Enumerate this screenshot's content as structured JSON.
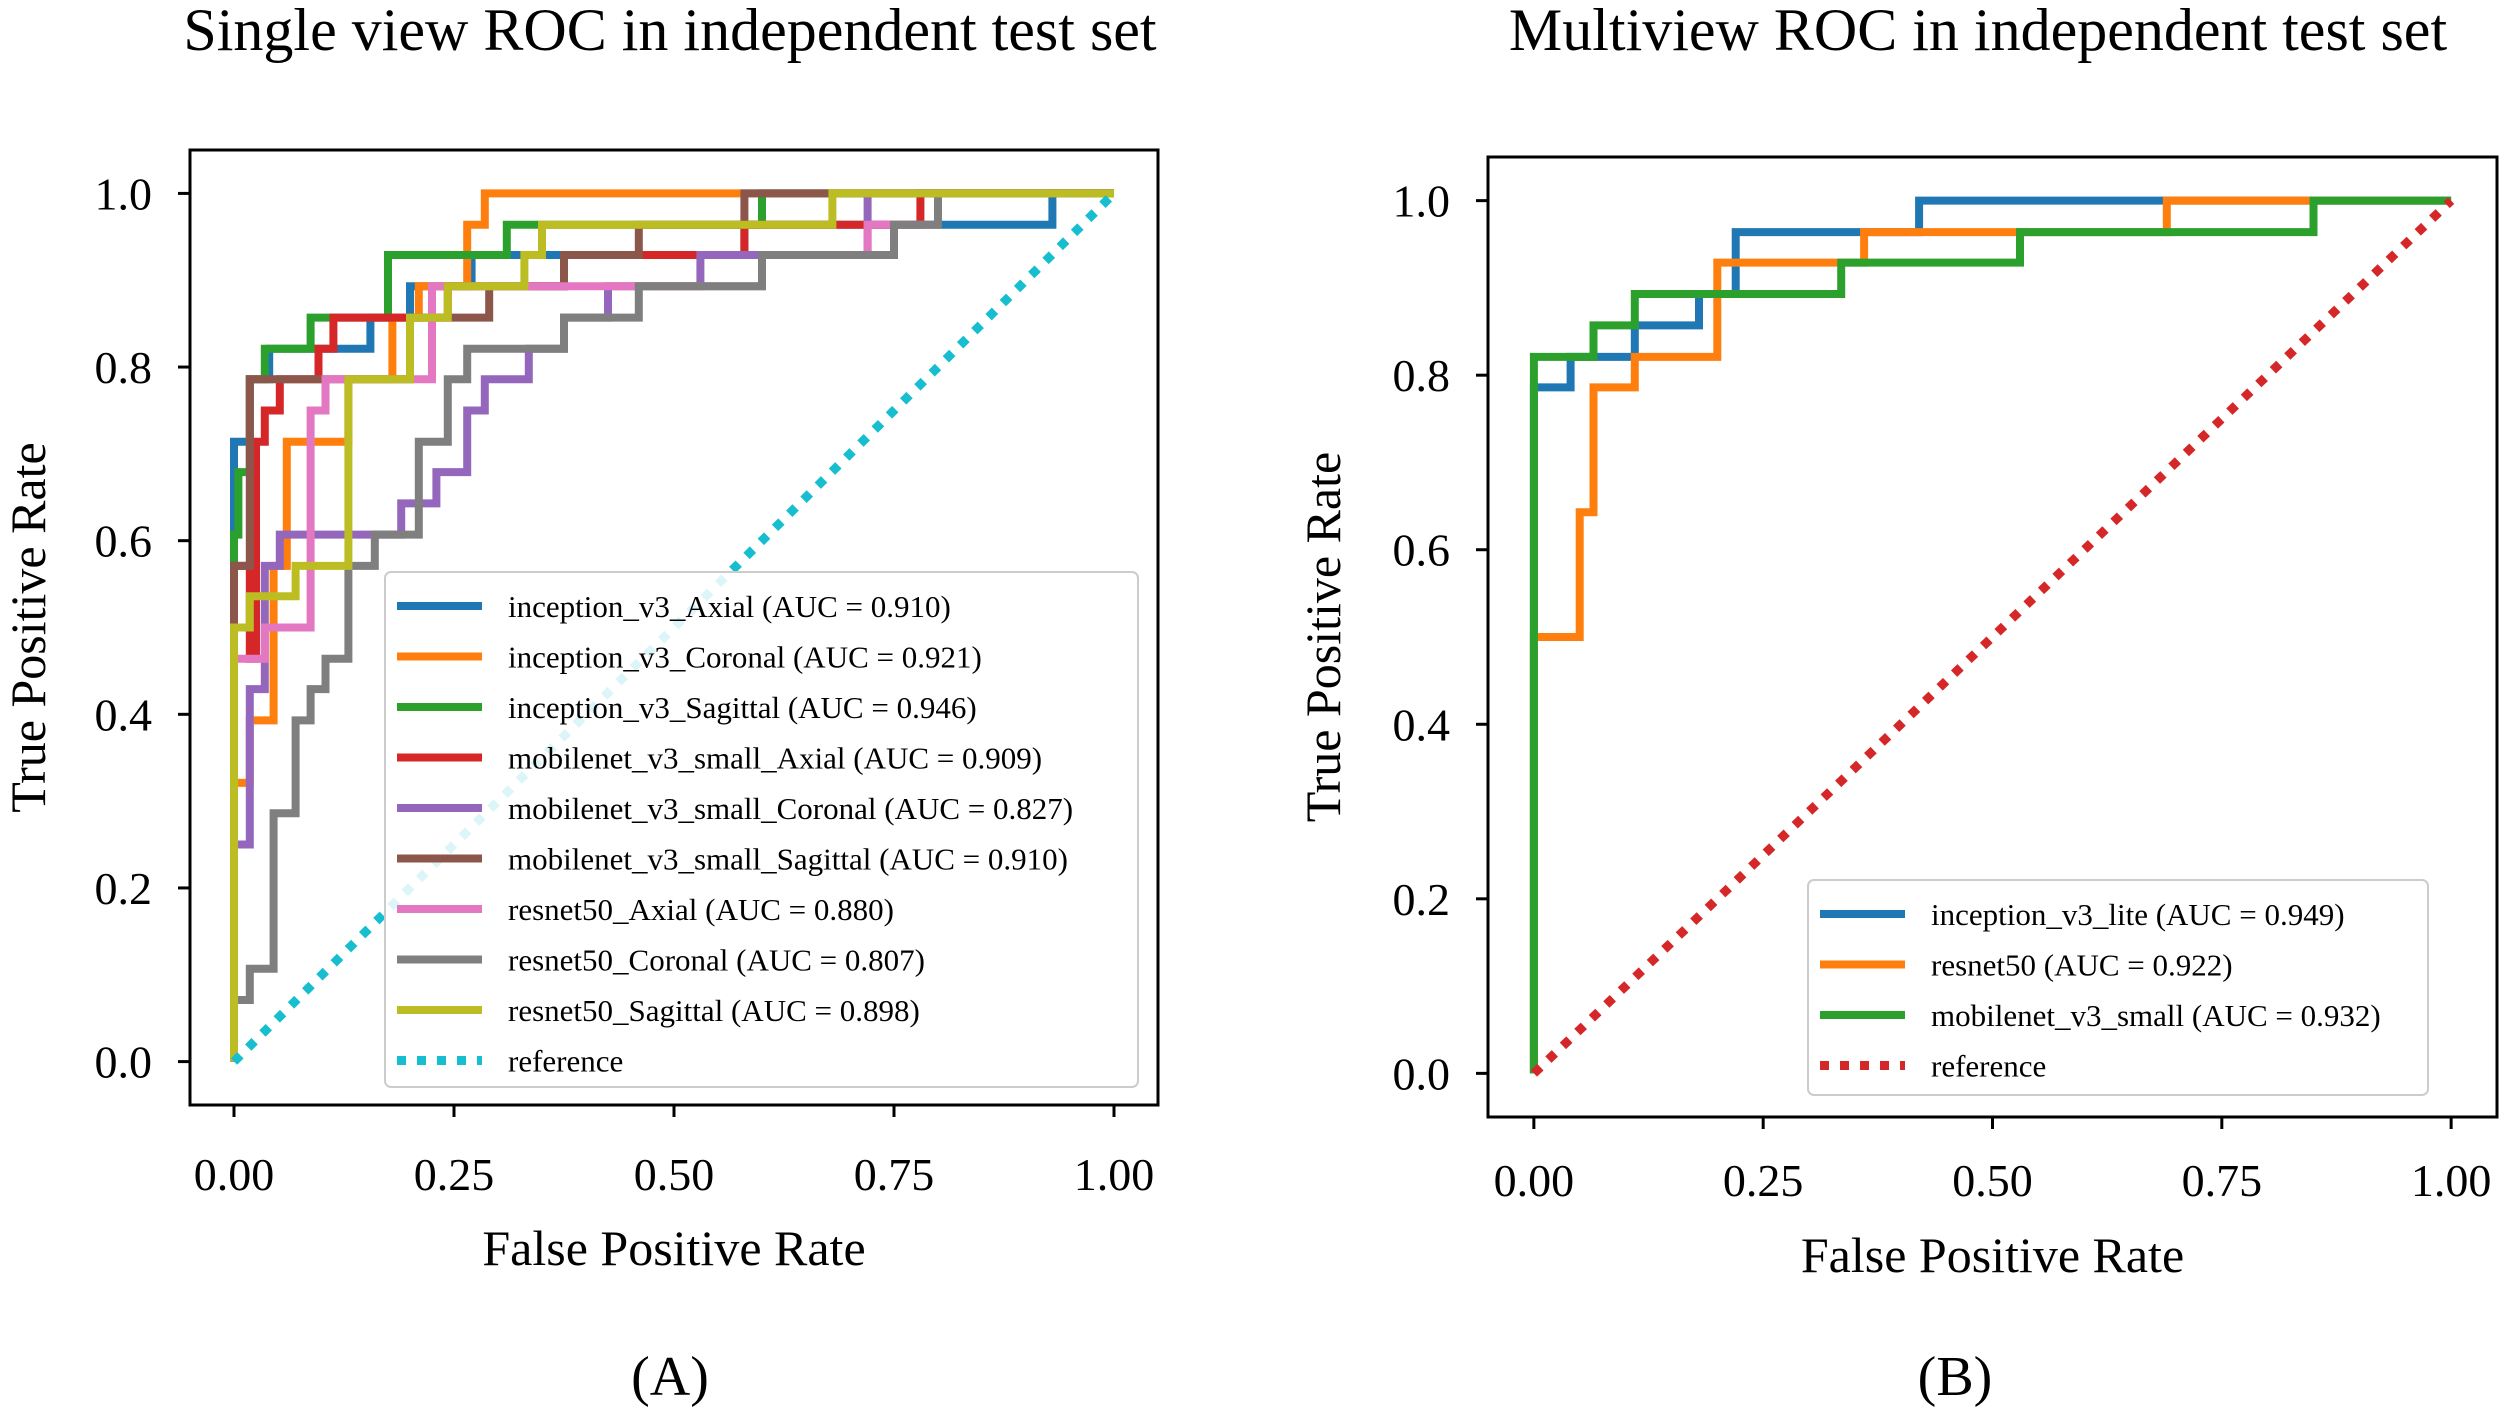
{
  "chart_data": [
    {
      "type": "line",
      "panel_label": "(A)",
      "title": "Single view ROC in independent test set",
      "xlabel": "False Positive Rate",
      "ylabel": "True Positive Rate",
      "xlim": [
        -0.05,
        1.05
      ],
      "ylim": [
        -0.05,
        1.05
      ],
      "xticks": [
        0,
        0.25,
        0.5,
        0.75,
        1.0
      ],
      "xtick_labels": [
        "0.00",
        "0.25",
        "0.50",
        "0.75",
        "1.00"
      ],
      "yticks": [
        0,
        0.2,
        0.4,
        0.6,
        0.8,
        1.0
      ],
      "ytick_labels": [
        "0.0",
        "0.2",
        "0.4",
        "0.6",
        "0.8",
        "1.0"
      ],
      "legend_position": "lower-right",
      "series": [
        {
          "name": "inception_v3_Axial (AUC = 0.910)",
          "color": "#1f77b4",
          "points": [
            [
              0,
              0
            ],
            [
              0,
              0.714
            ],
            [
              0.018,
              0.714
            ],
            [
              0.018,
              0.786
            ],
            [
              0.04,
              0.786
            ],
            [
              0.04,
              0.821
            ],
            [
              0.155,
              0.821
            ],
            [
              0.155,
              0.857
            ],
            [
              0.2,
              0.857
            ],
            [
              0.2,
              0.893
            ],
            [
              0.27,
              0.893
            ],
            [
              0.27,
              0.929
            ],
            [
              0.58,
              0.929
            ],
            [
              0.58,
              0.964
            ],
            [
              0.93,
              0.964
            ],
            [
              0.93,
              1.0
            ],
            [
              1.0,
              1.0
            ]
          ]
        },
        {
          "name": "inception_v3_Coronal (AUC = 0.921)",
          "color": "#ff7f0e",
          "points": [
            [
              0,
              0
            ],
            [
              0,
              0.321
            ],
            [
              0.018,
              0.321
            ],
            [
              0.018,
              0.393
            ],
            [
              0.045,
              0.393
            ],
            [
              0.045,
              0.571
            ],
            [
              0.06,
              0.571
            ],
            [
              0.06,
              0.714
            ],
            [
              0.13,
              0.714
            ],
            [
              0.13,
              0.786
            ],
            [
              0.18,
              0.786
            ],
            [
              0.18,
              0.857
            ],
            [
              0.21,
              0.857
            ],
            [
              0.21,
              0.893
            ],
            [
              0.265,
              0.893
            ],
            [
              0.265,
              0.964
            ],
            [
              0.285,
              0.964
            ],
            [
              0.285,
              1.0
            ],
            [
              1.0,
              1.0
            ]
          ]
        },
        {
          "name": "inception_v3_Sagittal (AUC = 0.946)",
          "color": "#2ca02c",
          "points": [
            [
              0,
              0
            ],
            [
              0,
              0.607
            ],
            [
              0.005,
              0.607
            ],
            [
              0.005,
              0.679
            ],
            [
              0.018,
              0.679
            ],
            [
              0.018,
              0.786
            ],
            [
              0.035,
              0.786
            ],
            [
              0.035,
              0.821
            ],
            [
              0.087,
              0.821
            ],
            [
              0.087,
              0.857
            ],
            [
              0.175,
              0.857
            ],
            [
              0.175,
              0.929
            ],
            [
              0.31,
              0.929
            ],
            [
              0.31,
              0.964
            ],
            [
              0.6,
              0.964
            ],
            [
              0.6,
              1.0
            ],
            [
              1.0,
              1.0
            ]
          ]
        },
        {
          "name": "mobilenet_v3_small_Axial (AUC = 0.909)",
          "color": "#d62728",
          "points": [
            [
              0,
              0
            ],
            [
              0,
              0.571
            ],
            [
              0.018,
              0.571
            ],
            [
              0.018,
              0.464
            ],
            [
              0.025,
              0.464
            ],
            [
              0.025,
              0.714
            ],
            [
              0.035,
              0.714
            ],
            [
              0.035,
              0.75
            ],
            [
              0.052,
              0.75
            ],
            [
              0.052,
              0.786
            ],
            [
              0.096,
              0.786
            ],
            [
              0.096,
              0.821
            ],
            [
              0.113,
              0.821
            ],
            [
              0.113,
              0.857
            ],
            [
              0.243,
              0.857
            ],
            [
              0.243,
              0.893
            ],
            [
              0.375,
              0.893
            ],
            [
              0.375,
              0.929
            ],
            [
              0.58,
              0.929
            ],
            [
              0.58,
              0.964
            ],
            [
              0.78,
              0.964
            ],
            [
              0.78,
              1.0
            ],
            [
              1.0,
              1.0
            ]
          ]
        },
        {
          "name": "mobilenet_v3_small_Coronal (AUC = 0.827)",
          "color": "#9467bd",
          "points": [
            [
              0,
              0
            ],
            [
              0,
              0.25
            ],
            [
              0.018,
              0.25
            ],
            [
              0.018,
              0.429
            ],
            [
              0.035,
              0.429
            ],
            [
              0.035,
              0.571
            ],
            [
              0.052,
              0.571
            ],
            [
              0.052,
              0.607
            ],
            [
              0.19,
              0.607
            ],
            [
              0.19,
              0.643
            ],
            [
              0.23,
              0.643
            ],
            [
              0.23,
              0.679
            ],
            [
              0.265,
              0.679
            ],
            [
              0.265,
              0.75
            ],
            [
              0.285,
              0.75
            ],
            [
              0.285,
              0.786
            ],
            [
              0.335,
              0.786
            ],
            [
              0.335,
              0.821
            ],
            [
              0.375,
              0.821
            ],
            [
              0.375,
              0.857
            ],
            [
              0.425,
              0.857
            ],
            [
              0.425,
              0.893
            ],
            [
              0.53,
              0.893
            ],
            [
              0.53,
              0.929
            ],
            [
              0.72,
              0.929
            ],
            [
              0.72,
              1.0
            ],
            [
              1.0,
              1.0
            ]
          ]
        },
        {
          "name": "mobilenet_v3_small_Sagittal (AUC = 0.910)",
          "color": "#8c564b",
          "points": [
            [
              0,
              0
            ],
            [
              0,
              0.571
            ],
            [
              0.018,
              0.571
            ],
            [
              0.018,
              0.786
            ],
            [
              0.2,
              0.786
            ],
            [
              0.2,
              0.857
            ],
            [
              0.29,
              0.857
            ],
            [
              0.29,
              0.893
            ],
            [
              0.375,
              0.893
            ],
            [
              0.375,
              0.929
            ],
            [
              0.46,
              0.929
            ],
            [
              0.46,
              0.964
            ],
            [
              0.58,
              0.964
            ],
            [
              0.58,
              1.0
            ],
            [
              1.0,
              1.0
            ]
          ]
        },
        {
          "name": "resnet50_Axial (AUC = 0.880)",
          "color": "#e377c2",
          "points": [
            [
              0,
              0
            ],
            [
              0,
              0.464
            ],
            [
              0.035,
              0.464
            ],
            [
              0.035,
              0.5
            ],
            [
              0.087,
              0.5
            ],
            [
              0.087,
              0.75
            ],
            [
              0.104,
              0.75
            ],
            [
              0.104,
              0.786
            ],
            [
              0.225,
              0.786
            ],
            [
              0.225,
              0.893
            ],
            [
              0.6,
              0.893
            ],
            [
              0.6,
              0.929
            ],
            [
              0.72,
              0.929
            ],
            [
              0.72,
              0.964
            ],
            [
              0.8,
              0.964
            ],
            [
              0.8,
              1.0
            ],
            [
              1.0,
              1.0
            ]
          ]
        },
        {
          "name": "resnet50_Coronal (AUC = 0.807)",
          "color": "#7f7f7f",
          "points": [
            [
              0,
              0
            ],
            [
              0,
              0.071
            ],
            [
              0.018,
              0.071
            ],
            [
              0.018,
              0.107
            ],
            [
              0.045,
              0.107
            ],
            [
              0.045,
              0.286
            ],
            [
              0.07,
              0.286
            ],
            [
              0.07,
              0.393
            ],
            [
              0.087,
              0.393
            ],
            [
              0.087,
              0.429
            ],
            [
              0.104,
              0.429
            ],
            [
              0.104,
              0.464
            ],
            [
              0.13,
              0.464
            ],
            [
              0.13,
              0.571
            ],
            [
              0.16,
              0.571
            ],
            [
              0.16,
              0.607
            ],
            [
              0.21,
              0.607
            ],
            [
              0.21,
              0.714
            ],
            [
              0.243,
              0.714
            ],
            [
              0.243,
              0.786
            ],
            [
              0.265,
              0.786
            ],
            [
              0.265,
              0.821
            ],
            [
              0.375,
              0.821
            ],
            [
              0.375,
              0.857
            ],
            [
              0.46,
              0.857
            ],
            [
              0.46,
              0.893
            ],
            [
              0.6,
              0.893
            ],
            [
              0.6,
              0.929
            ],
            [
              0.75,
              0.929
            ],
            [
              0.75,
              0.964
            ],
            [
              0.8,
              0.964
            ],
            [
              0.8,
              1.0
            ],
            [
              1.0,
              1.0
            ]
          ]
        },
        {
          "name": "resnet50_Sagittal (AUC = 0.898)",
          "color": "#bcbd22",
          "points": [
            [
              0,
              0
            ],
            [
              0,
              0.5
            ],
            [
              0.018,
              0.5
            ],
            [
              0.018,
              0.536
            ],
            [
              0.07,
              0.536
            ],
            [
              0.07,
              0.571
            ],
            [
              0.13,
              0.571
            ],
            [
              0.13,
              0.786
            ],
            [
              0.2,
              0.786
            ],
            [
              0.2,
              0.857
            ],
            [
              0.243,
              0.857
            ],
            [
              0.243,
              0.893
            ],
            [
              0.33,
              0.893
            ],
            [
              0.33,
              0.929
            ],
            [
              0.35,
              0.929
            ],
            [
              0.35,
              0.964
            ],
            [
              0.68,
              0.964
            ],
            [
              0.68,
              1.0
            ],
            [
              1.0,
              1.0
            ]
          ]
        },
        {
          "name": "reference",
          "color": "#17becf",
          "dashed": true,
          "points": [
            [
              0,
              0
            ],
            [
              1,
              1
            ]
          ]
        }
      ]
    },
    {
      "type": "line",
      "panel_label": "(B)",
      "title": "Multiview ROC in independent test set",
      "xlabel": "False Positive Rate",
      "ylabel": "True Positive Rate",
      "xlim": [
        -0.05,
        1.05
      ],
      "ylim": [
        -0.05,
        1.05
      ],
      "xticks": [
        0,
        0.25,
        0.5,
        0.75,
        1.0
      ],
      "xtick_labels": [
        "0.00",
        "0.25",
        "0.50",
        "0.75",
        "1.00"
      ],
      "yticks": [
        0,
        0.2,
        0.4,
        0.6,
        0.8,
        1.0
      ],
      "ytick_labels": [
        "0.0",
        "0.2",
        "0.4",
        "0.6",
        "0.8",
        "1.0"
      ],
      "legend_position": "lower-right",
      "series": [
        {
          "name": "inception_v3_lite (AUC = 0.949)",
          "color": "#1f77b4",
          "points": [
            [
              0,
              0
            ],
            [
              0,
              0.786
            ],
            [
              0.04,
              0.786
            ],
            [
              0.04,
              0.821
            ],
            [
              0.11,
              0.821
            ],
            [
              0.11,
              0.857
            ],
            [
              0.18,
              0.857
            ],
            [
              0.18,
              0.893
            ],
            [
              0.22,
              0.893
            ],
            [
              0.22,
              0.964
            ],
            [
              0.42,
              0.964
            ],
            [
              0.42,
              1.0
            ],
            [
              1.0,
              1.0
            ]
          ]
        },
        {
          "name": "resnet50 (AUC = 0.922)",
          "color": "#ff7f0e",
          "points": [
            [
              0,
              0
            ],
            [
              0,
              0.5
            ],
            [
              0.05,
              0.5
            ],
            [
              0.05,
              0.643
            ],
            [
              0.065,
              0.643
            ],
            [
              0.065,
              0.786
            ],
            [
              0.11,
              0.786
            ],
            [
              0.11,
              0.821
            ],
            [
              0.2,
              0.821
            ],
            [
              0.2,
              0.929
            ],
            [
              0.36,
              0.929
            ],
            [
              0.36,
              0.964
            ],
            [
              0.69,
              0.964
            ],
            [
              0.69,
              1.0
            ],
            [
              1.0,
              1.0
            ]
          ]
        },
        {
          "name": "mobilenet_v3_small (AUC = 0.932)",
          "color": "#2ca02c",
          "points": [
            [
              0,
              0
            ],
            [
              0,
              0.821
            ],
            [
              0.065,
              0.821
            ],
            [
              0.065,
              0.857
            ],
            [
              0.11,
              0.857
            ],
            [
              0.11,
              0.893
            ],
            [
              0.335,
              0.893
            ],
            [
              0.335,
              0.929
            ],
            [
              0.53,
              0.929
            ],
            [
              0.53,
              0.964
            ],
            [
              0.85,
              0.964
            ],
            [
              0.85,
              1.0
            ],
            [
              1.0,
              1.0
            ]
          ]
        },
        {
          "name": "reference",
          "color": "#d62728",
          "dashed": true,
          "points": [
            [
              0,
              0
            ],
            [
              1,
              1
            ]
          ]
        }
      ]
    }
  ]
}
